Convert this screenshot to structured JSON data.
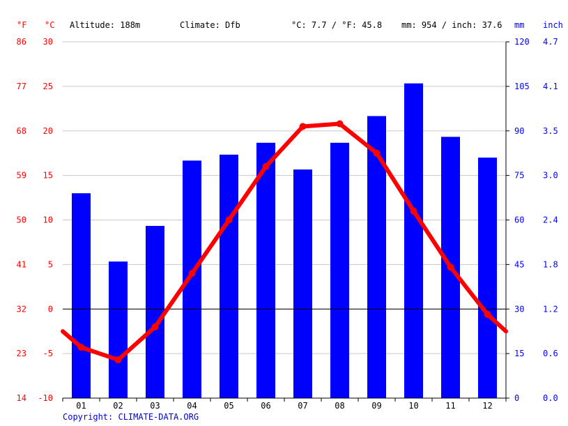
{
  "header": {
    "unit_f": "°F",
    "unit_c": "°C",
    "altitude": "Altitude: 188m",
    "climate": "Climate: Dfb",
    "avg_temp": "°C: 7.7 / °F: 45.8",
    "precip_total": "mm: 954 / inch: 37.6",
    "unit_mm": "mm",
    "unit_inch": "inch"
  },
  "copyright": "Copyright: CLIMATE-DATA.ORG",
  "colors": {
    "temperature": "#ff0000",
    "precipitation": "#0000ff",
    "grid": "#c8c8c8",
    "zero_line": "#000000"
  },
  "chart_data": {
    "type": "bar",
    "title": "",
    "categories": [
      "01",
      "02",
      "03",
      "04",
      "05",
      "06",
      "07",
      "08",
      "09",
      "10",
      "11",
      "12"
    ],
    "series": [
      {
        "type": "bar",
        "axis": "right",
        "values": [
          69,
          46,
          58,
          80,
          82,
          86,
          77,
          86,
          95,
          106,
          88,
          81
        ]
      },
      {
        "type": "line",
        "axis": "left",
        "values": [
          -4.3,
          -5.7,
          -2.0,
          4.0,
          10.0,
          16.0,
          20.5,
          20.8,
          17.5,
          11.0,
          4.7,
          -0.6
        ]
      }
    ],
    "line_extends_to_edges": true,
    "line_edge_values": [
      -2.5,
      -2.5
    ],
    "left_axis_c": {
      "min": -10,
      "max": 30,
      "ticks": [
        "30",
        "25",
        "20",
        "15",
        "10",
        "5",
        "0",
        "-5",
        "-10"
      ]
    },
    "left_axis_f": {
      "ticks": [
        "86",
        "77",
        "68",
        "59",
        "50",
        "41",
        "32",
        "23",
        "14"
      ]
    },
    "right_axis_mm": {
      "min": 0,
      "max": 120,
      "ticks": [
        "120",
        "105",
        "90",
        "75",
        "60",
        "45",
        "30",
        "15",
        "0"
      ]
    },
    "right_axis_inch": {
      "ticks": [
        "4.7",
        "4.1",
        "3.5",
        "3.0",
        "2.4",
        "1.8",
        "1.2",
        "0.6",
        "0.0"
      ]
    },
    "grid": true
  }
}
